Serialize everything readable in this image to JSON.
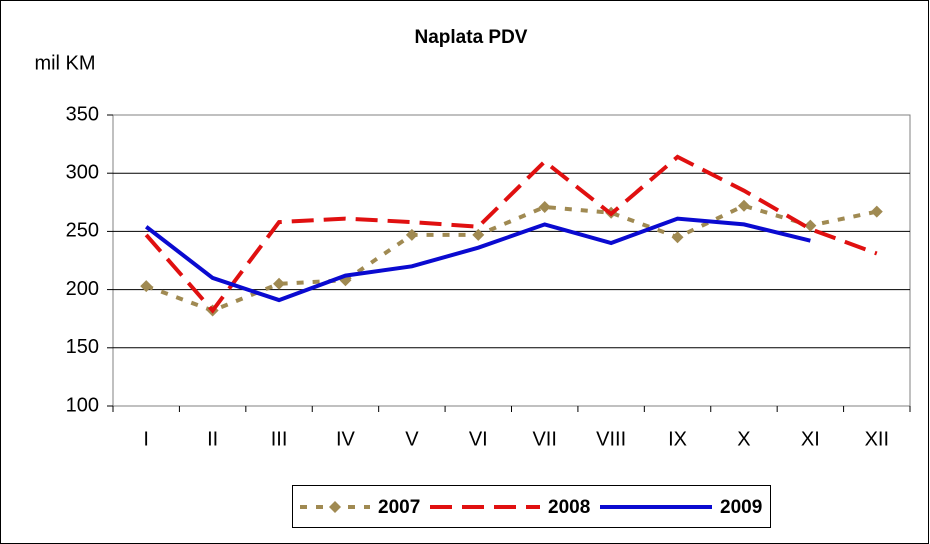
{
  "chart_data": {
    "type": "line",
    "title": "Naplata PDV",
    "y_label": "mil KM",
    "categories": [
      "I",
      "II",
      "III",
      "IV",
      "V",
      "VI",
      "VII",
      "VIII",
      "IX",
      "X",
      "XI",
      "XII"
    ],
    "series": [
      {
        "name": "2007",
        "color": "#a08a52",
        "style": "dotted",
        "marker": "diamond",
        "values": [
          203,
          182,
          205,
          208,
          247,
          247,
          271,
          266,
          245,
          272,
          255,
          267
        ]
      },
      {
        "name": "2008",
        "color": "#e01010",
        "style": "dashed",
        "marker": "none",
        "values": [
          247,
          182,
          258,
          261,
          258,
          254,
          310,
          265,
          314,
          285,
          252,
          231
        ]
      },
      {
        "name": "2009",
        "color": "#0a0ad0",
        "style": "solid",
        "marker": "none",
        "values": [
          254,
          210,
          191,
          212,
          220,
          236,
          256,
          240,
          261,
          256,
          242,
          null
        ]
      }
    ],
    "ylim": [
      100,
      350
    ],
    "yticks": [
      100,
      150,
      200,
      250,
      300,
      350
    ],
    "grid": true,
    "legend": "bottom"
  }
}
